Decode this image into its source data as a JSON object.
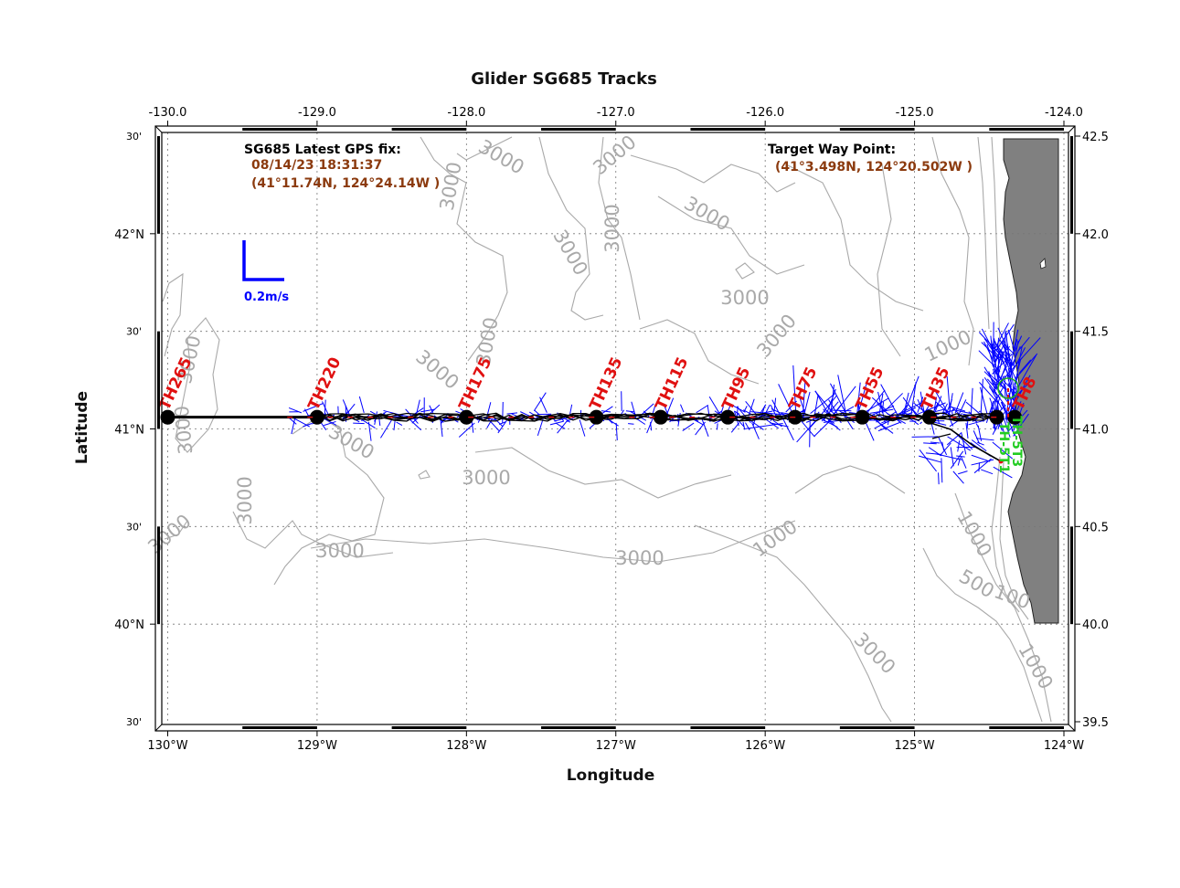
{
  "title": "Glider SG685 Tracks",
  "xlabel": "Longitude",
  "ylabel": "Latitude",
  "top_ticks": [
    "-130.0",
    "-129.0",
    "-128.0",
    "-127.0",
    "-126.0",
    "-125.0",
    "-124.0"
  ],
  "bottom_ticks": [
    "130°W",
    "129°W",
    "128°W",
    "127°W",
    "126°W",
    "125°W",
    "124°W"
  ],
  "left_ticks": [
    {
      "label": "42°N",
      "lat": 42.0
    },
    {
      "label": "41°N",
      "lat": 41.0
    },
    {
      "label": "40°N",
      "lat": 40.0
    }
  ],
  "left_minor_ticks": [
    {
      "label": "30'",
      "lat": 42.5
    },
    {
      "label": "30'",
      "lat": 41.5
    },
    {
      "label": "30'",
      "lat": 40.5
    },
    {
      "label": "30'",
      "lat": 39.5
    }
  ],
  "right_ticks": [
    "42.5",
    "42.0",
    "41.5",
    "41.0",
    "40.5",
    "40.0",
    "39.5"
  ],
  "gps_fix": {
    "heading": "SG685 Latest GPS fix:",
    "datetime": "08/14/23 18:31:37",
    "position": "(41°11.74N, 124°24.14W )"
  },
  "target": {
    "heading": "Target Way Point:",
    "position": "(41°3.498N, 124°20.502W )"
  },
  "scale_label": "0.2m/s",
  "contour_labels": [
    "3000",
    "3000",
    "3000",
    "3000",
    "3000",
    "3000",
    "3000",
    "3000",
    "3000",
    "3000",
    "3000",
    "3000",
    "3000",
    "3000",
    "3000",
    "3000",
    "3000",
    "3000",
    "3000",
    "1000",
    "1000",
    "1000",
    "1000",
    "500",
    "100"
  ],
  "stations": [
    "TH265",
    "TH220",
    "TH175",
    "TH135",
    "TH115",
    "TH95",
    "TH75",
    "TH55",
    "TH35",
    "TH8"
  ],
  "coastal_stations": [
    "TH-5T3",
    "TH-5T1"
  ],
  "chart_data": {
    "type": "map",
    "title": "Glider SG685 Tracks",
    "xlabel": "Longitude",
    "ylabel": "Latitude",
    "xlim": [
      -130.0,
      -124.0
    ],
    "ylim": [
      39.5,
      42.5
    ],
    "track_lat": 41.06,
    "waypoints_lon": [
      -130.0,
      -129.0,
      -128.0,
      -127.13,
      -126.7,
      -126.25,
      -125.8,
      -125.35,
      -124.9,
      -124.45,
      -124.33
    ],
    "latest_fix": {
      "lat": 41.196,
      "lon": -124.402
    },
    "target_waypoint": {
      "lat": 41.058,
      "lon": -124.342
    },
    "colors": {
      "track": "#000000",
      "currents": "#0000ff",
      "stations": "#e01010",
      "coastal_stations": "#22cc22",
      "land": "#808080",
      "contours": "#a9a9a9",
      "info_text": "#8b3a0e"
    }
  }
}
